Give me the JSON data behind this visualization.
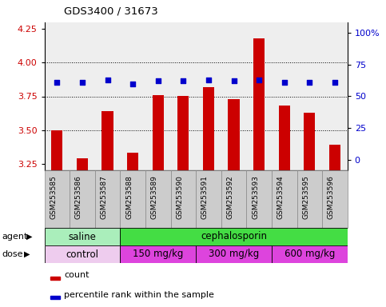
{
  "title": "GDS3400 / 31673",
  "samples": [
    "GSM253585",
    "GSM253586",
    "GSM253587",
    "GSM253588",
    "GSM253589",
    "GSM253590",
    "GSM253591",
    "GSM253592",
    "GSM253593",
    "GSM253594",
    "GSM253595",
    "GSM253596"
  ],
  "bar_values": [
    3.5,
    3.29,
    3.64,
    3.33,
    3.76,
    3.75,
    3.82,
    3.73,
    4.18,
    3.68,
    3.63,
    3.39
  ],
  "dot_values": [
    61,
    61,
    63,
    60,
    62,
    62,
    63,
    62,
    63,
    61,
    61,
    61
  ],
  "bar_color": "#cc0000",
  "dot_color": "#0000cc",
  "ylim_left": [
    3.2,
    4.3
  ],
  "ylim_right": [
    -8,
    108
  ],
  "yticks_left": [
    3.25,
    3.5,
    3.75,
    4.0,
    4.25
  ],
  "yticks_right": [
    0,
    25,
    50,
    75,
    100
  ],
  "ytick_labels_right": [
    "0",
    "25",
    "50",
    "75",
    "100%"
  ],
  "grid_values": [
    3.5,
    3.75,
    4.0
  ],
  "agent_groups": [
    {
      "label": "saline",
      "start": 0,
      "end": 3,
      "color": "#aaeebb"
    },
    {
      "label": "cephalosporin",
      "start": 3,
      "end": 12,
      "color": "#44dd44"
    }
  ],
  "dose_groups": [
    {
      "label": "control",
      "start": 0,
      "end": 3,
      "color": "#eeccee"
    },
    {
      "label": "150 mg/kg",
      "start": 3,
      "end": 6,
      "color": "#dd44dd"
    },
    {
      "label": "300 mg/kg",
      "start": 6,
      "end": 9,
      "color": "#dd44dd"
    },
    {
      "label": "600 mg/kg",
      "start": 9,
      "end": 12,
      "color": "#dd44dd"
    }
  ],
  "bg_color": "#ffffff",
  "plot_bg": "#eeeeee",
  "cell_bg": "#cccccc",
  "agent_label": "agent",
  "dose_label": "dose"
}
